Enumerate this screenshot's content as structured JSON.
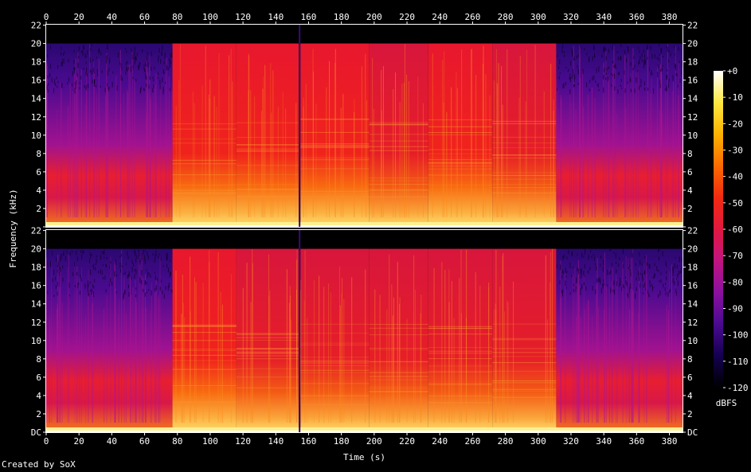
{
  "credit": "Created by SoX",
  "chart_data": {
    "type": "heatmap",
    "xlabel": "Time (s)",
    "ylabel": "Frequency (kHz)",
    "xlim": [
      0,
      388
    ],
    "ylim": [
      0,
      22.05
    ],
    "x_ticks": [
      0,
      20,
      40,
      60,
      80,
      100,
      120,
      140,
      160,
      180,
      200,
      220,
      240,
      260,
      280,
      300,
      320,
      340,
      360,
      380
    ],
    "x_tick_labels": [
      "0",
      "20",
      "40",
      "60",
      "80",
      "100",
      "120",
      "140",
      "160",
      "180",
      "200",
      "220",
      "240",
      "260",
      "280",
      "300",
      "320",
      "340",
      "360",
      "380"
    ],
    "y_ticks": [
      0,
      2,
      4,
      6,
      8,
      10,
      12,
      14,
      16,
      18,
      20,
      22
    ],
    "y_tick_labels_top_channel": [
      "",
      "2",
      "4",
      "6",
      "8",
      "10",
      "12",
      "14",
      "16",
      "18",
      "20",
      "22"
    ],
    "y_tick_labels_bottom_channel": [
      "DC",
      "2",
      "4",
      "6",
      "8",
      "10",
      "12",
      "14",
      "16",
      "18",
      "20",
      "22"
    ],
    "channels": [
      {
        "segments": [
          {
            "start": 0,
            "end": 77,
            "cutoff_khz": 20,
            "level": "quiet"
          },
          {
            "start": 77,
            "end": 116,
            "cutoff_khz": 20,
            "level": "loud"
          },
          {
            "start": 116,
            "end": 154,
            "cutoff_khz": 20,
            "level": "loud"
          },
          {
            "start": 155,
            "end": 197,
            "cutoff_khz": 20,
            "level": "loud"
          },
          {
            "start": 197,
            "end": 233,
            "cutoff_khz": 20,
            "level": "medium"
          },
          {
            "start": 233,
            "end": 272,
            "cutoff_khz": 20,
            "level": "loud"
          },
          {
            "start": 272,
            "end": 311,
            "cutoff_khz": 20,
            "level": "medium"
          },
          {
            "start": 311,
            "end": 388,
            "cutoff_khz": 20,
            "level": "quiet"
          }
        ]
      },
      {
        "segments": [
          {
            "start": 0,
            "end": 77,
            "cutoff_khz": 20,
            "level": "quiet"
          },
          {
            "start": 77,
            "end": 116,
            "cutoff_khz": 20,
            "level": "loud"
          },
          {
            "start": 116,
            "end": 154,
            "cutoff_khz": 20,
            "level": "medium"
          },
          {
            "start": 155,
            "end": 197,
            "cutoff_khz": 20,
            "level": "medium"
          },
          {
            "start": 197,
            "end": 233,
            "cutoff_khz": 20,
            "level": "medium"
          },
          {
            "start": 233,
            "end": 272,
            "cutoff_khz": 20,
            "level": "medium"
          },
          {
            "start": 272,
            "end": 311,
            "cutoff_khz": 20,
            "level": "medium"
          },
          {
            "start": 311,
            "end": 388,
            "cutoff_khz": 20,
            "level": "quiet"
          }
        ]
      }
    ],
    "colorbar": {
      "label": "dBFS",
      "range": [
        -120,
        0
      ],
      "tick_labels": [
        "+0",
        "-10",
        "-20",
        "-30",
        "-40",
        "-50",
        "-60",
        "-70",
        "-80",
        "-90",
        "-100",
        "-110",
        "-120"
      ],
      "colors": [
        "#000000",
        "#140050",
        "#4a0a90",
        "#8a10a0",
        "#c01480",
        "#e01840",
        "#f22a10",
        "#fb6a00",
        "#fdb200",
        "#fde840",
        "#ffffff"
      ]
    }
  }
}
